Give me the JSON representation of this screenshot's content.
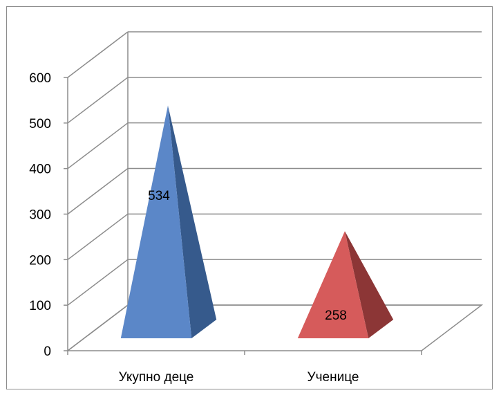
{
  "chart_data": {
    "type": "bar",
    "style": "3d-pyramid",
    "categories": [
      "Укупно деце",
      "Ученице"
    ],
    "values": [
      534,
      258
    ],
    "data_labels": [
      "534",
      "258"
    ],
    "colors": [
      {
        "front": "#5b87c8",
        "side": "#365a8c"
      },
      {
        "front": "#d65b5b",
        "side": "#8c3636"
      }
    ],
    "y_ticks": [
      "0",
      "100",
      "200",
      "300",
      "400",
      "500",
      "600"
    ],
    "ylim": [
      0,
      600
    ],
    "grid": true,
    "legend": "none",
    "title": "",
    "xlabel": "",
    "ylabel": ""
  }
}
